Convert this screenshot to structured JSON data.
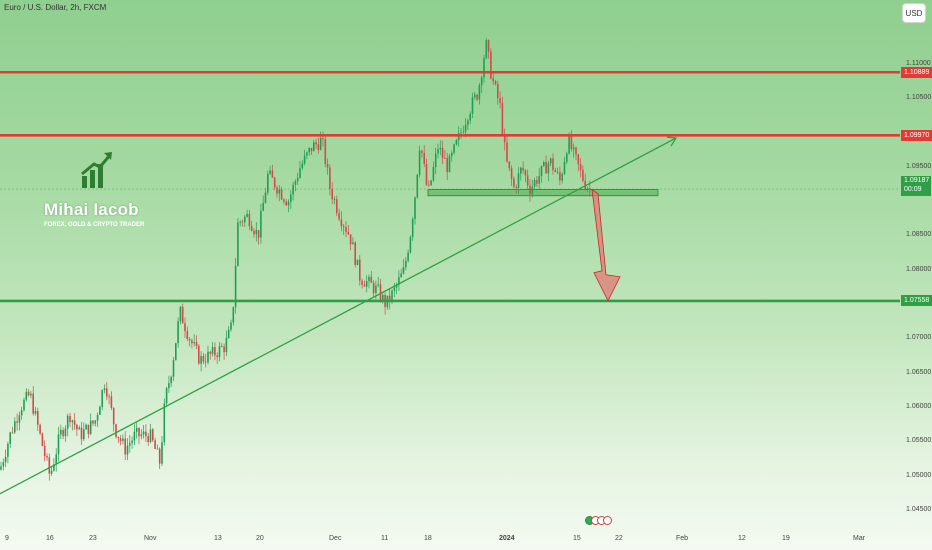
{
  "header": {
    "title": "Euro / U.S. Dollar, 2h, FXCM",
    "currency": "USD"
  },
  "branding": {
    "name": "Mihai Iacob",
    "tagline": "FOREX, GOLD & CRYPTO TRADER",
    "icon": "rising-bar-chart-arrow-icon"
  },
  "colors": {
    "resistance": "#e53935",
    "support": "#2ea043",
    "bull_candle": "#1f9e55",
    "bear_candle": "#d24a4a",
    "trendline": "#2ea043",
    "projection_arrow": "#e57373"
  },
  "chart_data": {
    "type": "candlestick",
    "symbol": "EURUSD",
    "interval": "2h",
    "source": "FXCM",
    "price_axis": {
      "ticks": [
        "1.11000",
        "1.10500",
        "1.09500",
        "1.08500",
        "1.08000",
        "1.07000",
        "1.06500",
        "1.06000",
        "1.05500",
        "1.05000",
        "1.04500"
      ],
      "range": [
        1.0425,
        1.1165
      ]
    },
    "time_axis": {
      "ticks": [
        "9",
        "16",
        "23",
        "Nov",
        "13",
        "20",
        "Dec",
        "11",
        "18",
        "2024",
        "15",
        "22",
        "Feb",
        "12",
        "19",
        "Mar"
      ]
    },
    "price_lines": [
      {
        "label": "1.10889",
        "price": 1.10889,
        "kind": "resistance"
      },
      {
        "label": "1.09970",
        "price": 1.0997,
        "kind": "resistance"
      },
      {
        "label": "1.07558",
        "price": 1.07558,
        "kind": "support"
      }
    ],
    "current_price": {
      "price": "1.09187",
      "countdown": "00:09"
    },
    "support_zone": {
      "top": 1.0918,
      "bottom": 1.0909
    },
    "trendline": {
      "from": {
        "date": "2023-10-03",
        "price": 1.0475
      },
      "to": {
        "date": "2024-01-30",
        "price": 1.0993
      }
    },
    "projection": {
      "from_price": 1.0918,
      "to_price": 1.0756,
      "direction": "down"
    },
    "price_path": [
      [
        0,
        1.051
      ],
      [
        10,
        1.056
      ],
      [
        20,
        1.06
      ],
      [
        30,
        1.062
      ],
      [
        40,
        1.056
      ],
      [
        50,
        1.05
      ],
      [
        60,
        1.056
      ],
      [
        70,
        1.059
      ],
      [
        80,
        1.056
      ],
      [
        95,
        1.058
      ],
      [
        105,
        1.064
      ],
      [
        115,
        1.057
      ],
      [
        125,
        1.054
      ],
      [
        135,
        1.056
      ],
      [
        150,
        1.056
      ],
      [
        160,
        1.052
      ],
      [
        165,
        1.061
      ],
      [
        172,
        1.066
      ],
      [
        180,
        1.074
      ],
      [
        190,
        1.07
      ],
      [
        200,
        1.067
      ],
      [
        215,
        1.068
      ],
      [
        225,
        1.069
      ],
      [
        232,
        1.072
      ],
      [
        238,
        1.087
      ],
      [
        248,
        1.088
      ],
      [
        258,
        1.085
      ],
      [
        268,
        1.094
      ],
      [
        278,
        1.092
      ],
      [
        288,
        1.09
      ],
      [
        300,
        1.095
      ],
      [
        312,
        1.098
      ],
      [
        322,
        1.099
      ],
      [
        330,
        1.092
      ],
      [
        340,
        1.088
      ],
      [
        350,
        1.085
      ],
      [
        360,
        1.079
      ],
      [
        370,
        1.078
      ],
      [
        378,
        1.077
      ],
      [
        386,
        1.075
      ],
      [
        394,
        1.077
      ],
      [
        404,
        1.08
      ],
      [
        410,
        1.085
      ],
      [
        415,
        1.091
      ],
      [
        420,
        1.099
      ],
      [
        428,
        1.091
      ],
      [
        438,
        1.098
      ],
      [
        448,
        1.095
      ],
      [
        458,
        1.099
      ],
      [
        468,
        1.103
      ],
      [
        478,
        1.106
      ],
      [
        486,
        1.113
      ],
      [
        492,
        1.108
      ],
      [
        500,
        1.104
      ],
      [
        506,
        1.096
      ],
      [
        514,
        1.092
      ],
      [
        522,
        1.095
      ],
      [
        530,
        1.092
      ],
      [
        540,
        1.094
      ],
      [
        550,
        1.096
      ],
      [
        560,
        1.093
      ],
      [
        568,
        1.099
      ],
      [
        576,
        1.096
      ],
      [
        584,
        1.093
      ],
      [
        590,
        1.0919
      ]
    ]
  }
}
